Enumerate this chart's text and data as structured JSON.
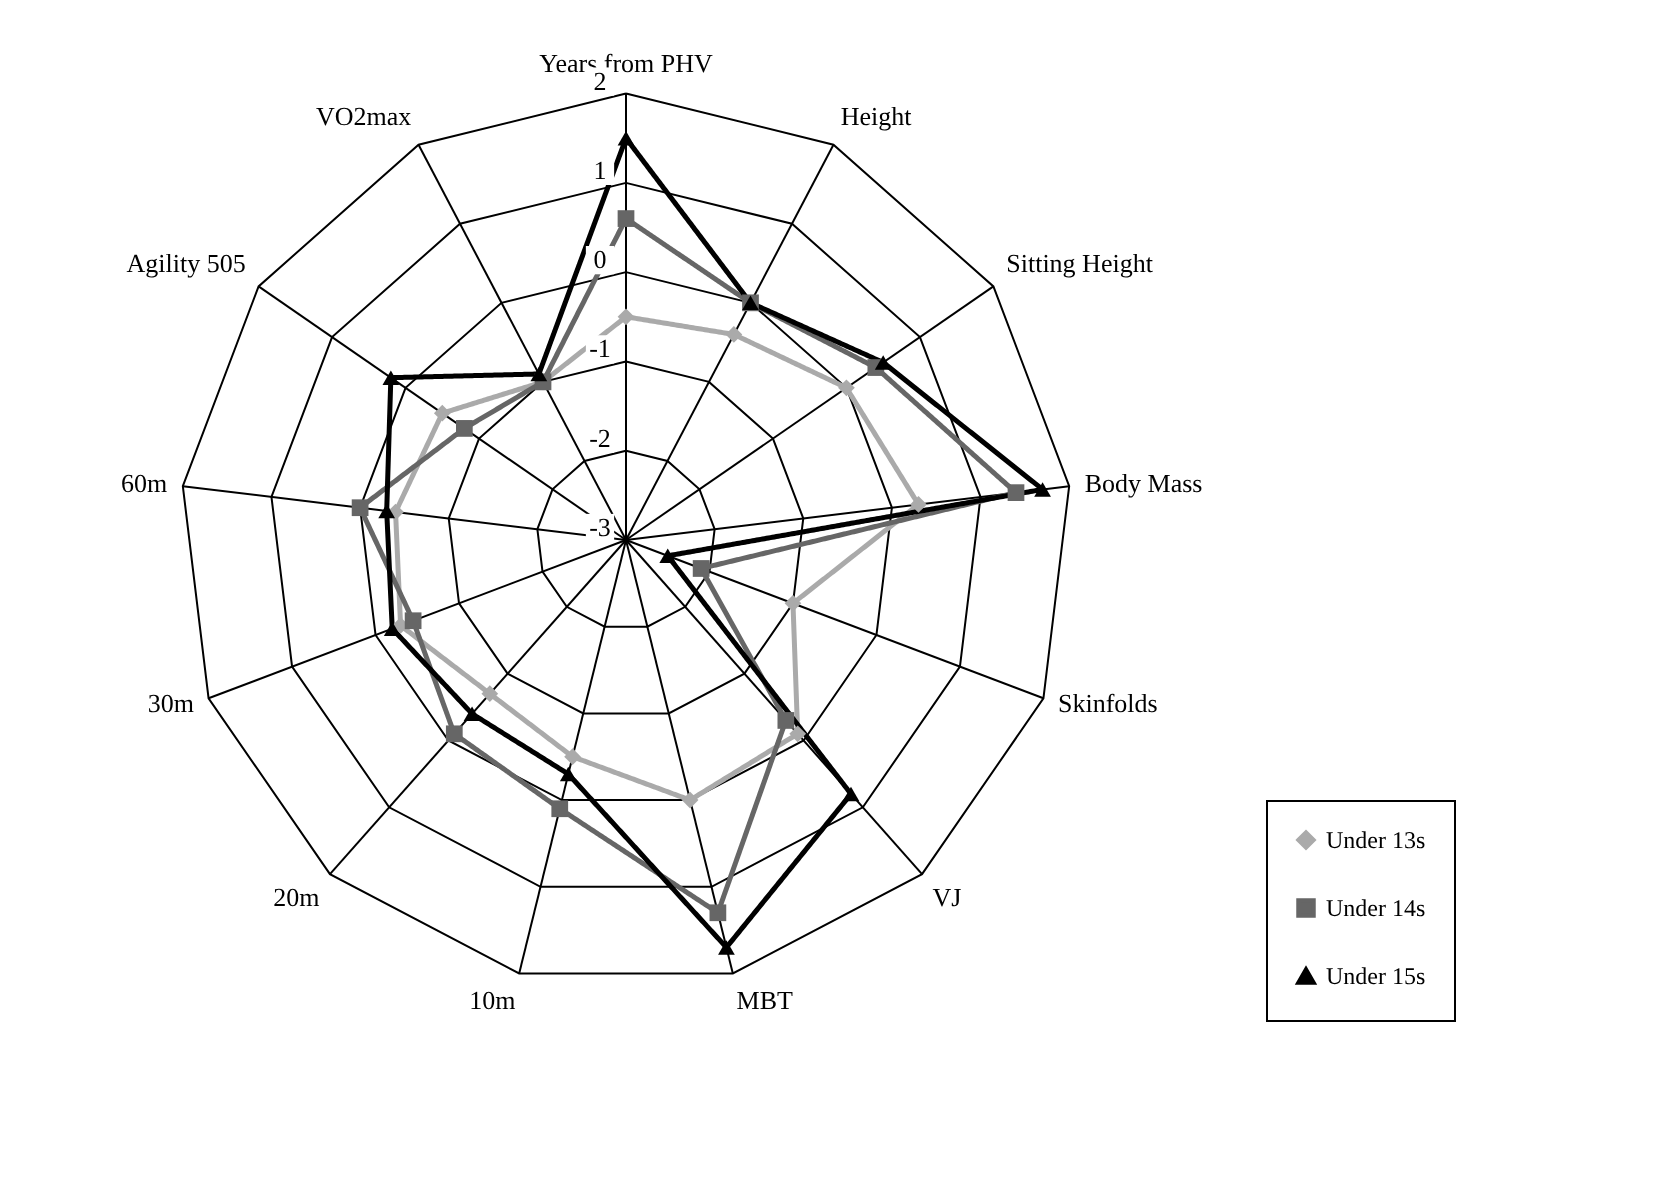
{
  "chart_data": {
    "type": "radar",
    "categories": [
      "Years from PHV",
      "Height",
      "Sitting Height",
      "Body Mass",
      "Skinfolds",
      "VJ",
      "MBT",
      "10m",
      "20m",
      "30m",
      "60m",
      "Agility 505",
      "VO2max"
    ],
    "ylim": [
      -3,
      2
    ],
    "yticks": [
      -3,
      -2,
      -1,
      0,
      1,
      2
    ],
    "grid": true,
    "legend": "bottom right",
    "line_style": "solid",
    "series": [
      {
        "name": "Under 13s",
        "color": "#aaaaaa",
        "marker": "diamond",
        "values": [
          -0.5,
          -0.4,
          0.0,
          0.3,
          -1.0,
          -0.1,
          0.0,
          -0.5,
          -0.7,
          -0.3,
          -0.4,
          -0.5,
          -1.0
        ]
      },
      {
        "name": "Under 14s",
        "color": "#666666",
        "marker": "square",
        "values": [
          0.6,
          0.0,
          0.4,
          1.4,
          -2.1,
          -0.3,
          1.3,
          0.1,
          -0.1,
          -0.45,
          0.0,
          -0.8,
          -1.0
        ]
      },
      {
        "name": "Under 15s",
        "color": "#000000",
        "marker": "triangle",
        "values": [
          1.5,
          0.0,
          0.5,
          1.7,
          -2.5,
          0.8,
          1.7,
          -0.3,
          -0.4,
          -0.2,
          -0.3,
          0.2,
          -0.9
        ]
      }
    ]
  }
}
